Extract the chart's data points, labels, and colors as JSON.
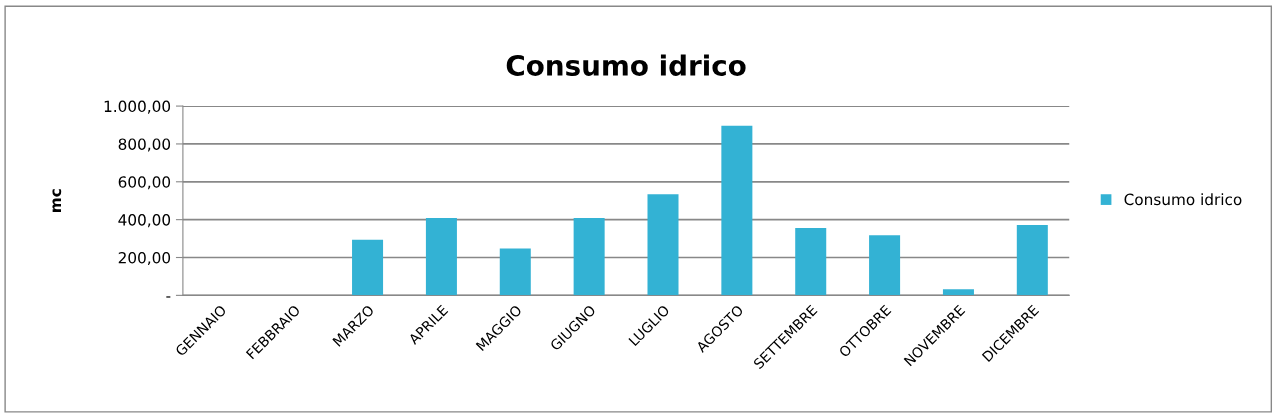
{
  "chart_data": {
    "type": "bar",
    "title": "Consumo idrico",
    "ylabel": "mc",
    "categories": [
      "GENNAIO",
      "FEBBRAIO",
      "MARZO",
      "APRILE",
      "MAGGIO",
      "GIUGNO",
      "LUGLIO",
      "AGOSTO",
      "SETTEMBRE",
      "OTTOBRE",
      "NOVEMBRE",
      "DICEMBRE"
    ],
    "series": [
      {
        "name": "Consumo idrico",
        "color": "#33b2d4",
        "values": [
          0,
          0,
          294,
          409,
          248,
          409,
          534,
          896,
          356,
          318,
          32,
          372
        ]
      }
    ],
    "ylim": [
      0,
      1000
    ],
    "yticks": [
      {
        "value": 0,
        "label": "-"
      },
      {
        "value": 200,
        "label": "200,00"
      },
      {
        "value": 400,
        "label": "400,00"
      },
      {
        "value": 600,
        "label": "600,00"
      },
      {
        "value": 800,
        "label": "800,00"
      },
      {
        "value": 1000,
        "label": "1.000,00"
      }
    ],
    "grid": "y",
    "legend": "right"
  }
}
